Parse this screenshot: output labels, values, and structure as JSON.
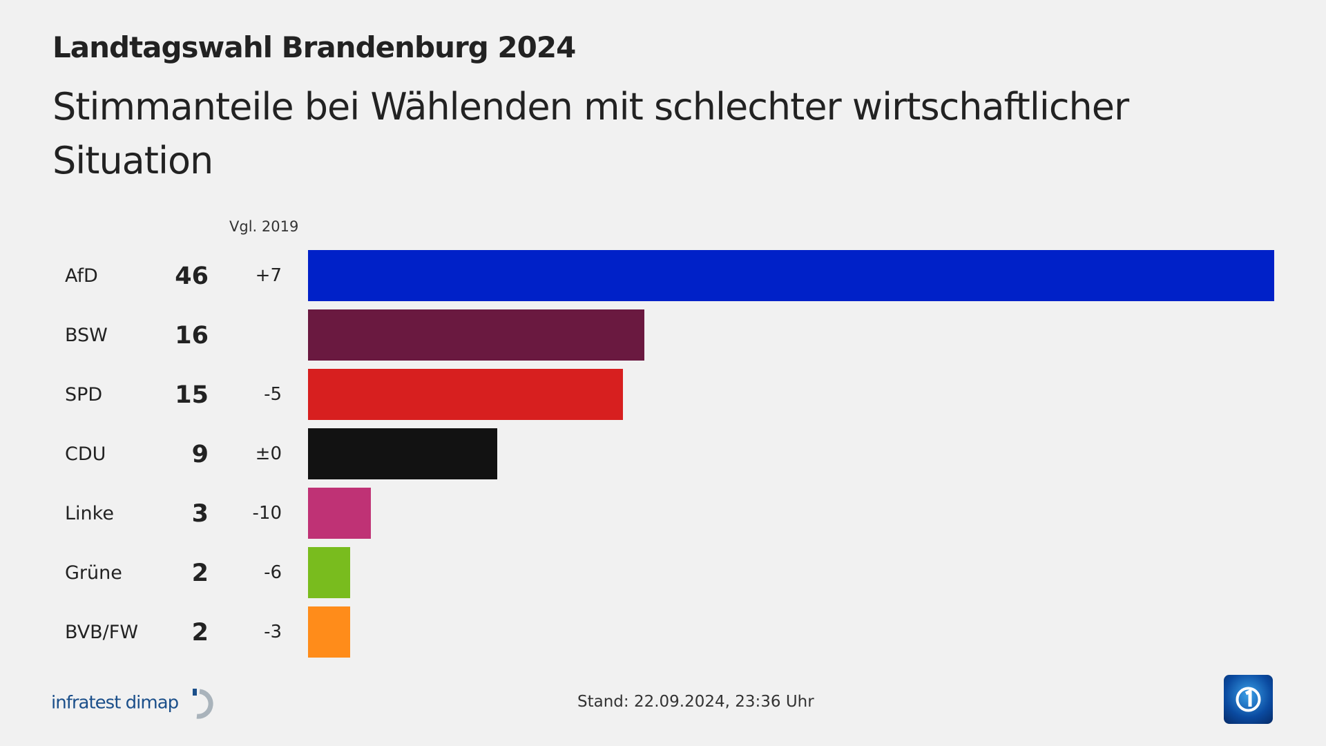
{
  "title": "Landtagswahl Brandenburg 2024",
  "subtitle": "Stimmanteile bei Wählenden mit schlechter wirtschaftlicher Situation",
  "chart_data": {
    "type": "bar",
    "orientation": "horizontal",
    "change_header": "Vgl. 2019",
    "categories": [
      "AfD",
      "BSW",
      "SPD",
      "CDU",
      "Linke",
      "Grüne",
      "BVB/FW"
    ],
    "values": [
      46,
      16,
      15,
      9,
      3,
      2,
      2
    ],
    "value_labels": [
      "46",
      "16",
      "15",
      "9",
      "3",
      "2",
      "2"
    ],
    "changes": [
      "+7",
      "",
      "-5",
      "±0",
      "-10",
      "-6",
      "-3"
    ],
    "colors": [
      "#0021c8",
      "#6a1940",
      "#d71f1f",
      "#121212",
      "#bf3275",
      "#79bc1e",
      "#ff8c1a"
    ],
    "xlim": [
      0,
      46
    ],
    "grid": false
  },
  "footer": {
    "source": "infratest dimap",
    "stand": "Stand:  22.09.2024, 23:36 Uhr"
  }
}
